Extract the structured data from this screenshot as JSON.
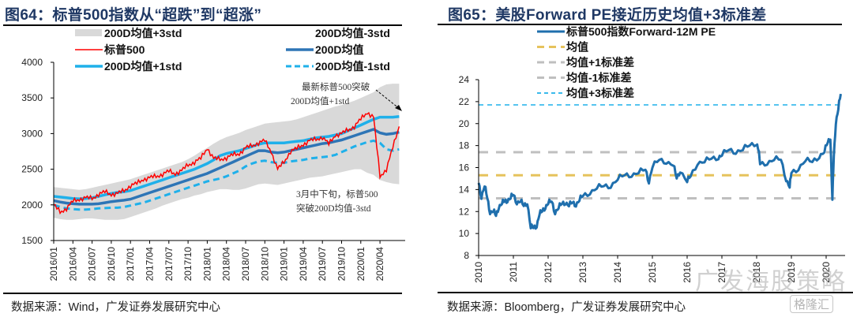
{
  "left": {
    "title_prefix": "图",
    "title_num": "64",
    "title_text": "：标普500指数从“超跌”到“超涨”",
    "source": "数据来源：Wind，广发证券发展研究中心"
  },
  "right": {
    "title_prefix": "图",
    "title_num": "65",
    "title_text": "：美股Forward PE接近历史均值+3标准差",
    "source": "数据来源：Bloomberg，广发证券发展研究中心"
  },
  "watermark": {
    "text": "广发海股策略",
    "badge": "格隆汇"
  },
  "colors": {
    "title": "#1f3864",
    "sp500": "#ff0000",
    "ma200": "#2e75b6",
    "plus1std": "#1fb0ea",
    "minus1std": "#1fb0ea",
    "band3std": "#d9d9d9",
    "pe": "#1f6fad",
    "mean": "#e6c35c",
    "std1": "#bfbfbf",
    "plus3std": "#1fb0ea"
  },
  "chart_data": [
    {
      "type": "line",
      "title": "标普500指数从“超跌”到“超涨”",
      "xlabel": "",
      "ylabel": "",
      "ylim": [
        1500,
        4000
      ],
      "yticks": [
        1500,
        2000,
        2500,
        3000,
        3500,
        4000
      ],
      "x_ticks": [
        "2016/01",
        "2016/04",
        "2016/07",
        "2016/10",
        "2017/01",
        "2017/04",
        "2017/07",
        "2017/10",
        "2018/01",
        "2018/04",
        "2018/07",
        "2018/10",
        "2019/01",
        "2019/04",
        "2019/07",
        "2019/10",
        "2020/01",
        "2020/04"
      ],
      "x_range_months": [
        0,
        54
      ],
      "legend": [
        {
          "label": "200D均值+3std",
          "style": "band"
        },
        {
          "label": "200D均值-3std",
          "style": "none"
        },
        {
          "label": "标普500",
          "style": "thin-solid"
        },
        {
          "label": "200D均值",
          "style": "thick-solid"
        },
        {
          "label": "200D均值+1std",
          "style": "thick-solid"
        },
        {
          "label": "200D均值-1std",
          "style": "dashed"
        }
      ],
      "legend_position": "top",
      "annotations": [
        {
          "lines": [
            "最新标普500突破",
            "200D均值+1std"
          ],
          "position": "upper-right",
          "arrow": true
        },
        {
          "lines": [
            "3月中下旬，标普500",
            "突破200D均值-3std"
          ],
          "position": "lower-right",
          "arrow": false
        }
      ],
      "x": [
        0,
        1,
        2,
        3,
        4,
        5,
        6,
        7,
        8,
        9,
        10,
        11,
        12,
        13,
        14,
        15,
        16,
        17,
        18,
        19,
        20,
        21,
        22,
        23,
        24,
        25,
        26,
        27,
        28,
        29,
        30,
        31,
        32,
        33,
        34,
        35,
        36,
        37,
        38,
        39,
        40,
        41,
        42,
        43,
        44,
        45,
        46,
        47,
        48,
        49,
        50,
        51,
        52,
        53,
        54
      ],
      "series": [
        {
          "name": "标普500",
          "values": [
            2000,
            1900,
            1950,
            2050,
            2080,
            2100,
            2090,
            2150,
            2180,
            2150,
            2160,
            2200,
            2270,
            2300,
            2360,
            2380,
            2400,
            2430,
            2470,
            2440,
            2480,
            2560,
            2600,
            2650,
            2800,
            2650,
            2640,
            2660,
            2700,
            2720,
            2800,
            2830,
            2870,
            2900,
            2750,
            2500,
            2600,
            2750,
            2790,
            2850,
            2900,
            2920,
            2950,
            2850,
            2980,
            3000,
            3050,
            3100,
            3200,
            3300,
            3230,
            2400,
            2500,
            2800,
            3100
          ]
        },
        {
          "name": "200D均值",
          "values": [
            2060,
            2040,
            2025,
            2015,
            2010,
            2010,
            2010,
            2015,
            2030,
            2045,
            2055,
            2065,
            2080,
            2110,
            2140,
            2170,
            2200,
            2230,
            2260,
            2290,
            2320,
            2350,
            2380,
            2410,
            2440,
            2480,
            2520,
            2560,
            2600,
            2640,
            2680,
            2720,
            2760,
            2760,
            2740,
            2730,
            2740,
            2760,
            2780,
            2800,
            2820,
            2840,
            2860,
            2870,
            2890,
            2910,
            2940,
            2970,
            3000,
            3030,
            3060,
            3010,
            2990,
            3000,
            3020
          ]
        },
        {
          "name": "200D均值+1std",
          "values": [
            2120,
            2110,
            2100,
            2090,
            2085,
            2090,
            2100,
            2120,
            2140,
            2160,
            2175,
            2185,
            2200,
            2230,
            2260,
            2290,
            2320,
            2350,
            2380,
            2410,
            2440,
            2470,
            2500,
            2540,
            2580,
            2630,
            2690,
            2720,
            2740,
            2760,
            2790,
            2820,
            2850,
            2870,
            2870,
            2870,
            2870,
            2880,
            2890,
            2900,
            2920,
            2940,
            2950,
            2960,
            2980,
            3000,
            3040,
            3080,
            3120,
            3160,
            3200,
            3230,
            3230,
            3230,
            3240
          ]
        },
        {
          "name": "200D均值-1std",
          "values": [
            2000,
            1970,
            1950,
            1940,
            1935,
            1935,
            1940,
            1950,
            1955,
            1960,
            1960,
            1970,
            1990,
            2010,
            2030,
            2060,
            2090,
            2120,
            2150,
            2180,
            2210,
            2240,
            2270,
            2300,
            2330,
            2350,
            2370,
            2400,
            2440,
            2480,
            2540,
            2580,
            2610,
            2620,
            2600,
            2590,
            2590,
            2610,
            2620,
            2630,
            2650,
            2660,
            2670,
            2680,
            2700,
            2740,
            2780,
            2820,
            2850,
            2880,
            2900,
            2870,
            2780,
            2760,
            2780
          ]
        },
        {
          "name": "200D均值+3std",
          "values": [
            2250,
            2240,
            2230,
            2220,
            2210,
            2220,
            2240,
            2260,
            2280,
            2300,
            2320,
            2340,
            2360,
            2390,
            2420,
            2450,
            2480,
            2510,
            2540,
            2570,
            2600,
            2640,
            2690,
            2750,
            2800,
            2860,
            2910,
            2950,
            2980,
            3010,
            3050,
            3080,
            3110,
            3140,
            3150,
            3160,
            3170,
            3180,
            3200,
            3230,
            3260,
            3290,
            3320,
            3350,
            3380,
            3400,
            3430,
            3460,
            3500,
            3540,
            3580,
            3650,
            3690,
            3700,
            3700
          ]
        },
        {
          "name": "200D均值-3std",
          "values": [
            1820,
            1800,
            1790,
            1790,
            1800,
            1810,
            1810,
            1800,
            1790,
            1790,
            1790,
            1800,
            1830,
            1860,
            1890,
            1920,
            1950,
            1990,
            2020,
            2050,
            2080,
            2100,
            2130,
            2150,
            2180,
            2200,
            2220,
            2220,
            2210,
            2210,
            2230,
            2260,
            2290,
            2300,
            2290,
            2280,
            2300,
            2320,
            2340,
            2360,
            2380,
            2390,
            2400,
            2420,
            2440,
            2460,
            2480,
            2500,
            2500,
            2450,
            2420,
            2350,
            2320,
            2300,
            2290
          ]
        }
      ]
    },
    {
      "type": "line",
      "title": "美股Forward PE接近历史均值+3标准差",
      "xlabel": "",
      "ylabel": "",
      "ylim": [
        8,
        24
      ],
      "yticks": [
        8,
        10,
        12,
        14,
        16,
        18,
        20,
        22,
        24
      ],
      "x_ticks": [
        "2010",
        "2011",
        "2012",
        "2013",
        "2014",
        "2015",
        "2016",
        "2017",
        "2018",
        "2019",
        "2020"
      ],
      "x_range_years": [
        2010,
        2020.45
      ],
      "legend": [
        {
          "label": "标普500指数Forward-12M PE",
          "style": "thick-solid"
        },
        {
          "label": "均值",
          "style": "dashed"
        },
        {
          "label": "均值+1标准差",
          "style": "dashed"
        },
        {
          "label": "均值-1标准差",
          "style": "dashed"
        },
        {
          "label": "均值+3标准差",
          "style": "dashed"
        }
      ],
      "legend_position": "top",
      "reference_lines": [
        {
          "name": "均值",
          "value": 15.3
        },
        {
          "name": "均值+1标准差",
          "value": 17.4
        },
        {
          "name": "均值-1标准差",
          "value": 13.2
        },
        {
          "name": "均值+3标准差",
          "value": 21.7
        }
      ],
      "x": [
        2010.0,
        2010.08,
        2010.17,
        2010.25,
        2010.33,
        2010.42,
        2010.5,
        2010.58,
        2010.67,
        2010.75,
        2010.83,
        2010.92,
        2011.0,
        2011.1,
        2011.2,
        2011.3,
        2011.4,
        2011.5,
        2011.58,
        2011.67,
        2011.75,
        2011.83,
        2011.92,
        2012.0,
        2012.1,
        2012.2,
        2012.3,
        2012.4,
        2012.5,
        2012.6,
        2012.7,
        2012.8,
        2012.9,
        2013.0,
        2013.2,
        2013.4,
        2013.6,
        2013.8,
        2014.0,
        2014.2,
        2014.4,
        2014.6,
        2014.8,
        2014.9,
        2015.0,
        2015.2,
        2015.4,
        2015.6,
        2015.7,
        2015.8,
        2016.0,
        2016.1,
        2016.3,
        2016.5,
        2016.7,
        2016.9,
        2017.0,
        2017.2,
        2017.4,
        2017.6,
        2017.8,
        2018.0,
        2018.05,
        2018.1,
        2018.3,
        2018.5,
        2018.7,
        2018.85,
        2018.95,
        2019.0,
        2019.2,
        2019.4,
        2019.6,
        2019.8,
        2019.95,
        2020.05,
        2020.12,
        2020.18,
        2020.22,
        2020.28,
        2020.35,
        2020.42
      ],
      "series": [
        {
          "name": "标普500指数Forward-12M PE",
          "values": [
            14.6,
            13.4,
            14.4,
            13.2,
            12.0,
            12.1,
            11.6,
            12.5,
            12.8,
            12.9,
            13.1,
            13.3,
            13.5,
            12.9,
            13.0,
            12.5,
            12.9,
            10.6,
            10.5,
            10.8,
            11.8,
            12.0,
            12.5,
            12.8,
            12.9,
            12.0,
            12.4,
            12.7,
            12.9,
            12.6,
            12.8,
            12.7,
            13.1,
            13.4,
            13.8,
            14.2,
            14.3,
            14.4,
            15.0,
            15.3,
            15.4,
            15.6,
            15.8,
            14.8,
            16.1,
            16.7,
            16.6,
            16.3,
            15.0,
            15.8,
            14.8,
            15.2,
            16.5,
            16.6,
            16.8,
            17.0,
            17.2,
            17.6,
            17.5,
            17.7,
            18.0,
            18.3,
            17.7,
            16.3,
            16.5,
            16.8,
            16.7,
            15.0,
            14.3,
            15.5,
            16.0,
            16.7,
            16.5,
            17.1,
            17.5,
            18.3,
            18.8,
            13.2,
            17.0,
            20.2,
            21.4,
            22.7
          ]
        }
      ]
    }
  ]
}
